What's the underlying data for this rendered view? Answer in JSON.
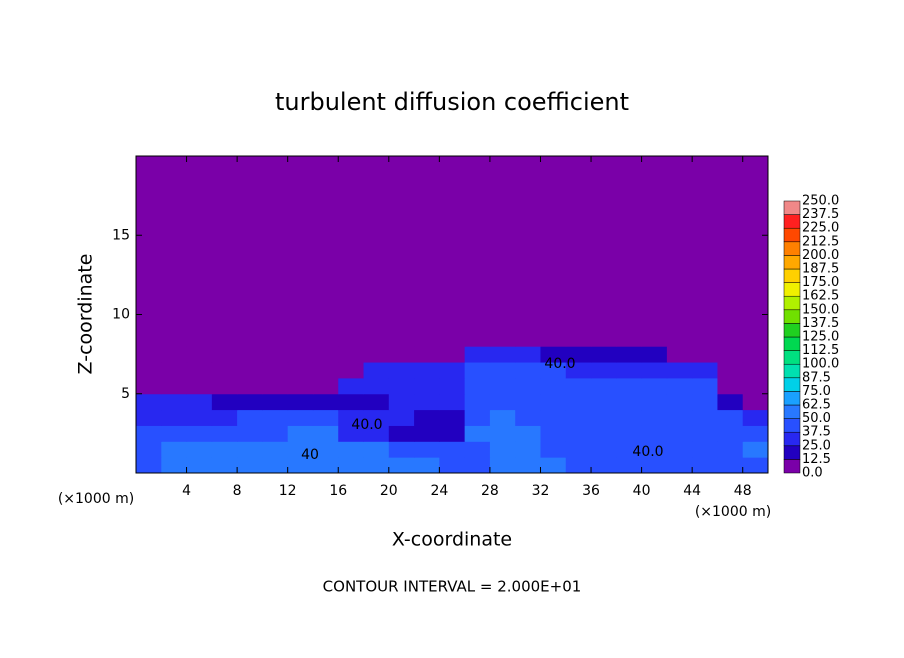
{
  "chart_data": {
    "type": "contour",
    "title": "turbulent diffusion coefficient",
    "x_label": "X-coordinate",
    "y_label": "Z-coordinate",
    "x_unit_left": "(×1000 m)",
    "x_unit_right": "(×1000 m)",
    "footnote": "CONTOUR INTERVAL = 2.000E+01",
    "xlim": [
      0,
      50
    ],
    "ylim": [
      0,
      20
    ],
    "xticks": [
      4,
      8,
      12,
      16,
      20,
      24,
      28,
      32,
      36,
      40,
      44,
      48
    ],
    "yticks": [
      5,
      10,
      15
    ],
    "contour_labels": [
      "40.0",
      "40.0",
      "40.0",
      "40"
    ],
    "x": [
      1,
      3,
      5,
      7,
      9,
      11,
      13,
      15,
      17,
      19,
      21,
      23,
      25,
      27,
      29,
      31,
      33,
      35,
      37,
      39,
      41,
      43,
      45,
      47,
      49
    ],
    "y": [
      0.5,
      1.5,
      2.5,
      3.5,
      4.5,
      5.5,
      6.5,
      7.5,
      8.5
    ],
    "z": [
      [
        45,
        55,
        55,
        55,
        55,
        60,
        60,
        55,
        55,
        55,
        55,
        50,
        40,
        40,
        55,
        60,
        55,
        40,
        40,
        40,
        40,
        40,
        45,
        45,
        45
      ],
      [
        40,
        50,
        55,
        55,
        55,
        55,
        60,
        60,
        55,
        50,
        45,
        40,
        40,
        45,
        60,
        55,
        45,
        40,
        40,
        40,
        40,
        40,
        40,
        45,
        50
      ],
      [
        40,
        40,
        45,
        45,
        45,
        45,
        55,
        55,
        30,
        30,
        15,
        15,
        20,
        50,
        55,
        50,
        45,
        40,
        40,
        40,
        40,
        40,
        40,
        40,
        40
      ],
      [
        35,
        35,
        35,
        35,
        40,
        40,
        40,
        40,
        35,
        35,
        35,
        20,
        20,
        45,
        50,
        45,
        40,
        40,
        40,
        40,
        40,
        40,
        40,
        40,
        30
      ],
      [
        30,
        30,
        30,
        20,
        20,
        20,
        20,
        20,
        20,
        20,
        30,
        30,
        30,
        45,
        45,
        45,
        40,
        40,
        40,
        40,
        40,
        40,
        40,
        20,
        10
      ],
      [
        5,
        5,
        5,
        5,
        5,
        5,
        5,
        5,
        30,
        30,
        30,
        30,
        30,
        40,
        40,
        40,
        40,
        40,
        40,
        40,
        40,
        40,
        40,
        10,
        0
      ],
      [
        0,
        0,
        0,
        0,
        0,
        0,
        0,
        0,
        0,
        30,
        30,
        30,
        30,
        40,
        40,
        40,
        40,
        35,
        35,
        35,
        35,
        35,
        30,
        0,
        0
      ],
      [
        0,
        0,
        0,
        0,
        0,
        0,
        0,
        0,
        0,
        10,
        10,
        10,
        0,
        35,
        35,
        35,
        20,
        20,
        20,
        20,
        20,
        10,
        0,
        0,
        0
      ],
      [
        0,
        0,
        0,
        0,
        0,
        0,
        0,
        0,
        0,
        0,
        0,
        0,
        0,
        10,
        10,
        10,
        0,
        0,
        0,
        0,
        0,
        0,
        0,
        0,
        0
      ]
    ],
    "colorbar": {
      "levels": [
        {
          "value": 0,
          "label": "0.0"
        },
        12.5,
        {
          "value": 25,
          "label": "25.0"
        },
        37.5,
        {
          "value": 50,
          "label": "50.0"
        },
        62.5,
        {
          "value": 75,
          "label": "75.0"
        },
        87.5,
        {
          "value": 100,
          "label": "100.0"
        },
        112.5,
        {
          "value": 125,
          "label": "125.0"
        },
        137.5,
        {
          "value": 150,
          "label": "150.0"
        },
        162.5,
        {
          "value": 175,
          "label": "175.0"
        },
        187.5,
        {
          "value": 200,
          "label": "200.0"
        },
        212.5,
        {
          "value": 225,
          "label": "225.0"
        },
        237.5,
        {
          "value": 250,
          "label": "250.0"
        }
      ],
      "colors": [
        "#7a00a8",
        "#2200c0",
        "#2828f0",
        "#2850ff",
        "#2878ff",
        "#1aa0ff",
        "#00d0e8",
        "#00e0b0",
        "#00e080",
        "#00d850",
        "#20d020",
        "#70e000",
        "#b0f000",
        "#f0f000",
        "#ffd000",
        "#ffa800",
        "#ff8000",
        "#ff4800",
        "#ff2020",
        "#f08888"
      ]
    }
  }
}
